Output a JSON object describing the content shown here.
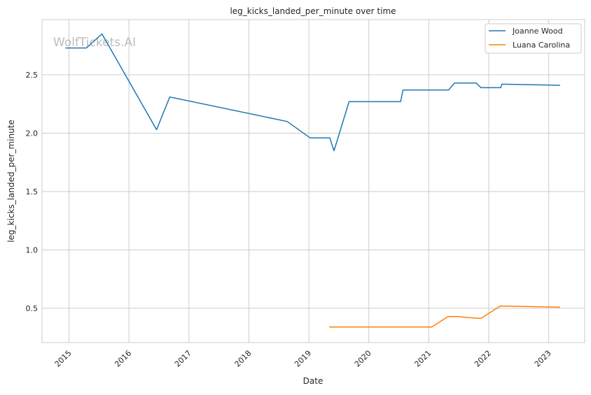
{
  "chart_data": {
    "type": "line",
    "title": "leg_kicks_landed_per_minute over time",
    "xlabel": "Date",
    "ylabel": "leg_kicks_landed_per_minute",
    "watermark": "WolfTickets.AI",
    "xlim": [
      2014.55,
      2023.6
    ],
    "ylim": [
      0.207,
      2.973
    ],
    "x_ticks": [
      2015,
      2016,
      2017,
      2018,
      2019,
      2020,
      2021,
      2022,
      2023
    ],
    "x_tick_labels": [
      "2015",
      "2016",
      "2017",
      "2018",
      "2019",
      "2020",
      "2021",
      "2022",
      "2023"
    ],
    "y_ticks": [
      0.5,
      1.0,
      1.5,
      2.0,
      2.5
    ],
    "y_tick_labels": [
      "0.5",
      "1.0",
      "1.5",
      "2.0",
      "2.5"
    ],
    "grid": true,
    "legend_position": "top-right",
    "series": [
      {
        "name": "Joanne Wood",
        "color": "#1f77b4",
        "x": [
          2014.94,
          2015.29,
          2015.55,
          2016.46,
          2016.68,
          2018.64,
          2019.02,
          2019.35,
          2019.42,
          2019.67,
          2020.53,
          2020.57,
          2021.33,
          2021.43,
          2021.79,
          2021.87,
          2022.2,
          2022.22,
          2023.19
        ],
        "y": [
          2.73,
          2.73,
          2.85,
          2.03,
          2.31,
          2.1,
          1.96,
          1.96,
          1.85,
          2.27,
          2.27,
          2.37,
          2.37,
          2.43,
          2.43,
          2.39,
          2.39,
          2.42,
          2.41
        ]
      },
      {
        "name": "Luana Carolina",
        "color": "#ff7f0e",
        "x": [
          2019.34,
          2021.05,
          2021.32,
          2021.47,
          2021.8,
          2021.87,
          2022.19,
          2023.19
        ],
        "y": [
          0.34,
          0.34,
          0.43,
          0.43,
          0.415,
          0.415,
          0.52,
          0.51
        ]
      }
    ]
  }
}
